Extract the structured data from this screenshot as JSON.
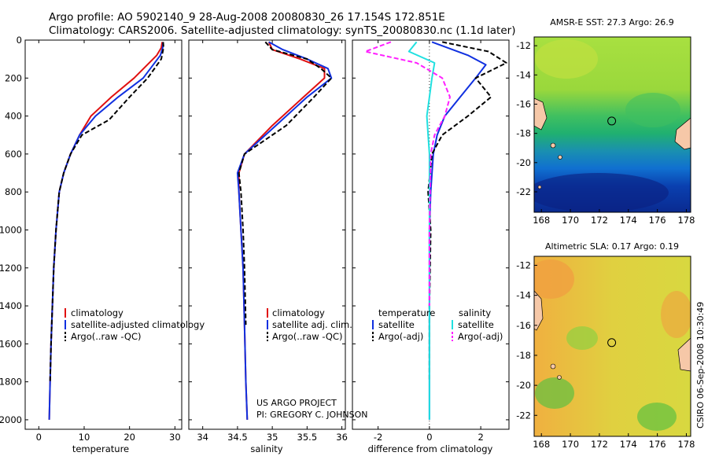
{
  "title": {
    "line1": "Argo profile: AO 5902140_9 28-Aug-2008 20080830_26 17.154S 172.851E",
    "line2": "Climatology: CARS2006. Satellite-adjusted climatology: synTS_20080830.nc (1.1d later)"
  },
  "credits": {
    "project": "US ARGO PROJECT",
    "pi": "PI: GREGORY C. JOHNSON",
    "timestamp": "CSIRO 06-Sep-2008 10:30:49"
  },
  "colors": {
    "climatology": "#e01010",
    "satellite": "#1030e0",
    "argo": "#000000",
    "salinity_satellite": "#20e0e0",
    "salinity_argo": "#ff20ff"
  },
  "chart_data": [
    {
      "type": "line",
      "panel": "temperature",
      "xlabel": "temperature",
      "ylabel": "",
      "xlim": [
        -3,
        31.5
      ],
      "ylim": [
        2050,
        0
      ],
      "xticks": [
        0,
        10,
        20,
        30
      ],
      "yticks": [
        0,
        200,
        400,
        600,
        800,
        1000,
        1200,
        1400,
        1600,
        1800,
        2000
      ],
      "legend": [
        "climatology",
        "satellite-adjusted climatology",
        "Argo(..raw -QC)"
      ],
      "legend_placement": "lower-left",
      "series": [
        {
          "name": "climatology",
          "color": "#e01010",
          "x": [
            27.2,
            27.0,
            26.0,
            21.0,
            16.0,
            11.5,
            9.0,
            7.0,
            5.5,
            4.5,
            3.8,
            3.3,
            3.0,
            2.7,
            2.5,
            2.3
          ],
          "y": [
            10,
            40,
            80,
            200,
            300,
            400,
            500,
            600,
            700,
            800,
            1000,
            1200,
            1400,
            1600,
            1800,
            2000
          ]
        },
        {
          "name": "satellite-adjusted climatology",
          "color": "#1030e0",
          "x": [
            27.4,
            27.3,
            26.8,
            23.0,
            17.5,
            12.5,
            9.0,
            7.0,
            5.5,
            4.5,
            3.8,
            3.3,
            3.0,
            2.7,
            2.5,
            2.3
          ],
          "y": [
            10,
            40,
            80,
            200,
            300,
            400,
            500,
            600,
            700,
            800,
            1000,
            1200,
            1400,
            1600,
            1800,
            2000
          ]
        },
        {
          "name": "Argo(..raw -QC)",
          "color": "#000000",
          "dashed": true,
          "x": [
            27.4,
            27.5,
            27.0,
            24.0,
            20.0,
            15.5,
            9.5,
            7.0,
            5.5,
            4.5,
            3.8,
            3.3,
            3.0,
            2.7,
            2.5
          ],
          "y": [
            10,
            40,
            100,
            200,
            300,
            420,
            500,
            600,
            700,
            800,
            1000,
            1200,
            1400,
            1600,
            1800
          ]
        }
      ]
    },
    {
      "type": "line",
      "panel": "salinity",
      "xlabel": "salinity",
      "ylabel": "",
      "xlim": [
        33.8,
        36.05
      ],
      "ylim": [
        2050,
        0
      ],
      "xticks": [
        34,
        34.5,
        35,
        35.5,
        36
      ],
      "legend": [
        "climatology",
        "satellite adj. clim.",
        "Argo(..raw -QC)"
      ],
      "legend_placement": "lower-right",
      "series": [
        {
          "name": "climatology",
          "color": "#e01010",
          "x": [
            34.95,
            35.0,
            35.4,
            35.75,
            35.75,
            35.45,
            35.0,
            34.6,
            34.52,
            34.52,
            34.55,
            34.58,
            34.6,
            34.62,
            34.64
          ],
          "y": [
            10,
            50,
            100,
            150,
            200,
            300,
            450,
            600,
            700,
            800,
            1000,
            1200,
            1500,
            1800,
            2000
          ]
        },
        {
          "name": "satellite adj. clim.",
          "color": "#1030e0",
          "x": [
            34.95,
            35.15,
            35.5,
            35.8,
            35.85,
            35.5,
            35.05,
            34.6,
            34.5,
            34.52,
            34.55,
            34.58,
            34.6,
            34.62,
            34.64
          ],
          "y": [
            10,
            50,
            100,
            150,
            200,
            300,
            450,
            600,
            700,
            800,
            1000,
            1200,
            1500,
            1800,
            2000
          ]
        },
        {
          "name": "Argo(..raw -QC)",
          "color": "#000000",
          "dashed": true,
          "x": [
            34.9,
            35.0,
            35.5,
            35.7,
            35.85,
            35.6,
            35.2,
            34.6,
            34.52,
            34.55,
            34.58,
            34.6,
            34.62
          ],
          "y": [
            10,
            50,
            100,
            150,
            200,
            300,
            450,
            600,
            700,
            800,
            1000,
            1200,
            1500
          ]
        }
      ]
    },
    {
      "type": "line",
      "panel": "difference",
      "xlabel": "difference from climatology",
      "ylabel": "",
      "xlim": [
        -3,
        3.1
      ],
      "ylim": [
        2050,
        0
      ],
      "xticks": [
        -2,
        0,
        2
      ],
      "legend_headers": [
        "temperature",
        "salinity"
      ],
      "legend": [
        "satellite",
        "Argo(-adj)",
        "satellite",
        "Argo(-adj)"
      ],
      "legend_placement": "lower",
      "series": [
        {
          "name": "satellite",
          "group": "temperature",
          "color": "#1030e0",
          "x": [
            0.1,
            1.5,
            2.2,
            1.8,
            1.2,
            0.6,
            0.3,
            0.15,
            0.05,
            0.0,
            0.0,
            0.0,
            0.0
          ],
          "y": [
            10,
            80,
            130,
            200,
            300,
            400,
            500,
            600,
            800,
            1000,
            1400,
            1800,
            2000
          ]
        },
        {
          "name": "Argo(-adj)",
          "group": "temperature",
          "color": "#000000",
          "dashed": true,
          "x": [
            0.5,
            2.3,
            3.0,
            1.8,
            2.4,
            1.5,
            0.5,
            0.1,
            -0.05,
            0.05,
            0.0,
            0.0
          ],
          "y": [
            10,
            60,
            120,
            200,
            300,
            400,
            500,
            600,
            800,
            1000,
            1400,
            1800
          ]
        },
        {
          "name": "satellite",
          "group": "salinity",
          "color": "#20e0e0",
          "x": [
            -0.5,
            -0.8,
            0.2,
            0.1,
            0.0,
            -0.1,
            -0.05,
            0.0,
            0.0,
            0.0,
            0.0
          ],
          "y": [
            10,
            60,
            120,
            200,
            300,
            400,
            500,
            600,
            1000,
            1600,
            2000
          ]
        },
        {
          "name": "Argo(-adj)",
          "group": "salinity",
          "color": "#ff20ff",
          "dashed": true,
          "x": [
            -1.5,
            -2.5,
            -0.5,
            0.5,
            0.8,
            0.6,
            0.2,
            0.05,
            0.0,
            0.0
          ],
          "y": [
            10,
            60,
            120,
            200,
            300,
            400,
            500,
            600,
            1000,
            1400
          ]
        }
      ]
    },
    {
      "type": "heatmap",
      "panel": "AMSR-E SST",
      "title": "AMSR-E SST: 27.3 Argo: 26.9",
      "xlim": [
        167.5,
        178.3
      ],
      "ylim": [
        -23.4,
        -11.4
      ],
      "xticks": [
        168,
        170,
        172,
        174,
        176,
        178
      ],
      "yticks": [
        -12,
        -14,
        -16,
        -18,
        -20,
        -22
      ],
      "marker": {
        "lon": 172.851,
        "lat": -17.154
      }
    },
    {
      "type": "heatmap",
      "panel": "Altimetric SLA",
      "title": "Altimetric SLA: 0.17 Argo: 0.19",
      "xlim": [
        167.5,
        178.3
      ],
      "ylim": [
        -23.4,
        -11.4
      ],
      "xticks": [
        168,
        170,
        172,
        174,
        176,
        178
      ],
      "yticks": [
        -12,
        -14,
        -16,
        -18,
        -20,
        -22
      ],
      "marker": {
        "lon": 172.851,
        "lat": -17.154
      }
    }
  ]
}
